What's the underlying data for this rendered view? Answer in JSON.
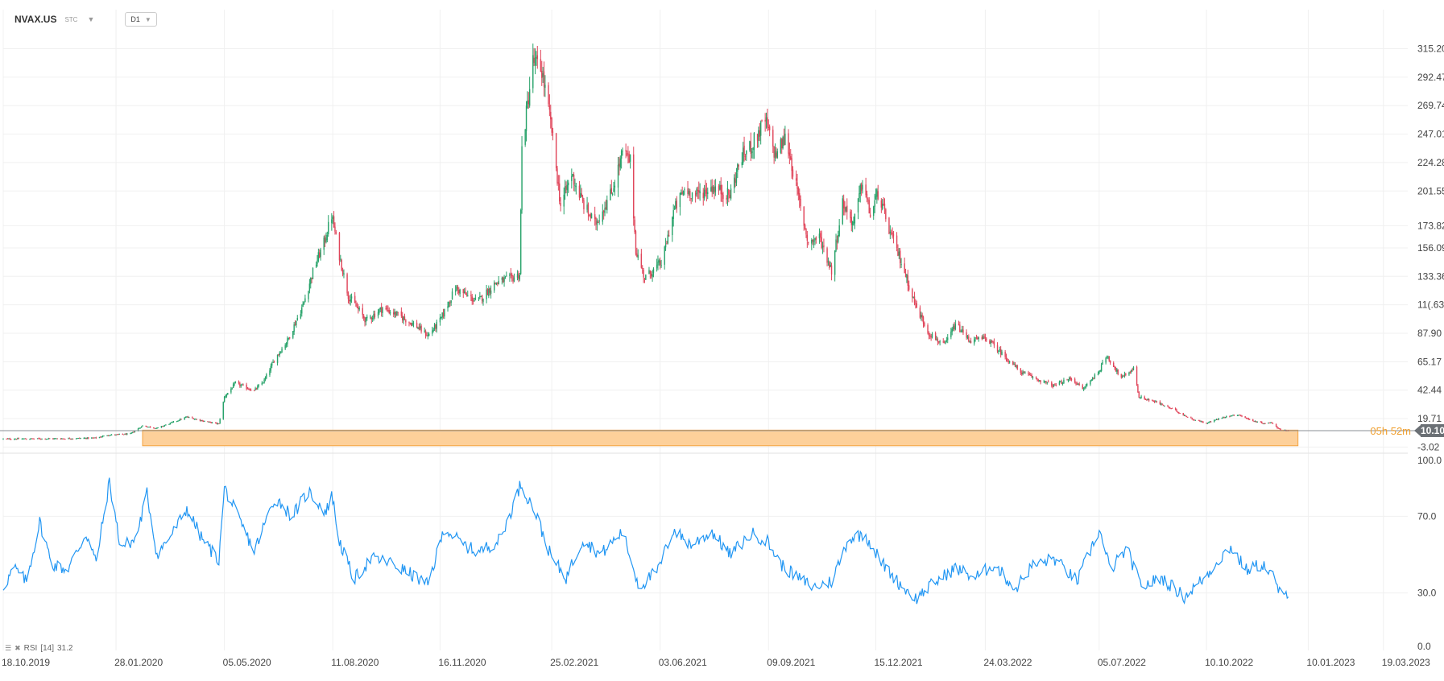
{
  "header": {
    "symbol": "NVAX.US",
    "instrument_type": "STC",
    "timeframe": "D1"
  },
  "indicator": {
    "name": "RSI",
    "period": "[14]",
    "value": "31.2"
  },
  "current_price": {
    "label": "10.10",
    "countdown": "05h 52m"
  },
  "colors": {
    "up_candle": "#26a269",
    "down_candle": "#e0455a",
    "rsi_line": "#2196f3",
    "zone_fill": "#fdd09a",
    "zone_border": "#f4a340",
    "price_tag_bg": "#6b7075",
    "countdown_text": "#f0a030",
    "grid": "#f0f0f0"
  },
  "chart_data": [
    {
      "type": "candlestick",
      "title": "",
      "ylabel": "",
      "y_ticks": [
        "315.20",
        "292.47",
        "269.74",
        "247.01",
        "224.28",
        "201.55",
        "173.82",
        "156.09",
        "133.36",
        "11(.63",
        "87.90",
        "65.17",
        "42.44",
        "19.71",
        "-3.02"
      ],
      "ylim": [
        -6,
        340
      ],
      "x_ticks": [
        "18.10.2019",
        "28.01.2020",
        "05.05.2020",
        "11.08.2020",
        "16.11.2020",
        "25.02.2021",
        "03.06.2021",
        "09.09.2021",
        "15.12.2021",
        "24.03.2022",
        "05.07.2022",
        "10.10.2022",
        "10.01.2023",
        "19.03.2023"
      ],
      "x_range": [
        "2019-10-18",
        "2023-04-10"
      ],
      "current_price": 10.1,
      "support_zone": {
        "from": "2020-02-21",
        "to": "2022-12-23",
        "low": -2,
        "high": 10.5
      },
      "price_path": [
        [
          "2019-10-18",
          3.5
        ],
        [
          "2019-12-15",
          3.8
        ],
        [
          "2020-01-10",
          4.3
        ],
        [
          "2020-01-20",
          6.5
        ],
        [
          "2020-02-10",
          7.5
        ],
        [
          "2020-02-21",
          14.0
        ],
        [
          "2020-03-05",
          12.0
        ],
        [
          "2020-03-23",
          18.0
        ],
        [
          "2020-04-01",
          21.0
        ],
        [
          "2020-04-20",
          17.0
        ],
        [
          "2020-04-30",
          15.5
        ],
        [
          "2020-05-05",
          37.0
        ],
        [
          "2020-05-15",
          48.0
        ],
        [
          "2020-06-01",
          42.0
        ],
        [
          "2020-06-10",
          50.0
        ],
        [
          "2020-06-20",
          68.0
        ],
        [
          "2020-07-01",
          82.0
        ],
        [
          "2020-07-15",
          110.0
        ],
        [
          "2020-07-25",
          140.0
        ],
        [
          "2020-08-03",
          160.0
        ],
        [
          "2020-08-10",
          182.0
        ],
        [
          "2020-08-17",
          150.0
        ],
        [
          "2020-08-25",
          118.0
        ],
        [
          "2020-09-10",
          98.0
        ],
        [
          "2020-09-25",
          108.0
        ],
        [
          "2020-10-10",
          102.0
        ],
        [
          "2020-10-25",
          94.0
        ],
        [
          "2020-11-05",
          86.0
        ],
        [
          "2020-11-16",
          98.0
        ],
        [
          "2020-11-30",
          124.0
        ],
        [
          "2020-12-10",
          118.0
        ],
        [
          "2020-12-20",
          113.0
        ],
        [
          "2021-01-05",
          128.0
        ],
        [
          "2021-01-20",
          132.0
        ],
        [
          "2021-01-27",
          135.0
        ],
        [
          "2021-01-29",
          235.0
        ],
        [
          "2021-02-08",
          305.0
        ],
        [
          "2021-02-16",
          298.0
        ],
        [
          "2021-02-25",
          250.0
        ],
        [
          "2021-03-05",
          190.0
        ],
        [
          "2021-03-15",
          215.0
        ],
        [
          "2021-03-25",
          192.0
        ],
        [
          "2021-04-05",
          175.0
        ],
        [
          "2021-04-20",
          200.0
        ],
        [
          "2021-04-30",
          232.0
        ],
        [
          "2021-05-07",
          225.0
        ],
        [
          "2021-05-12",
          155.0
        ],
        [
          "2021-05-20",
          132.0
        ],
        [
          "2021-06-05",
          145.0
        ],
        [
          "2021-06-15",
          185.0
        ],
        [
          "2021-06-25",
          203.0
        ],
        [
          "2021-07-05",
          198.0
        ],
        [
          "2021-07-20",
          205.0
        ],
        [
          "2021-08-05",
          198.0
        ],
        [
          "2021-08-15",
          228.0
        ],
        [
          "2021-08-25",
          238.0
        ],
        [
          "2021-09-06",
          258.0
        ],
        [
          "2021-09-15",
          230.0
        ],
        [
          "2021-09-25",
          245.0
        ],
        [
          "2021-10-05",
          200.0
        ],
        [
          "2021-10-15",
          160.0
        ],
        [
          "2021-10-25",
          165.0
        ],
        [
          "2021-11-05",
          138.0
        ],
        [
          "2021-11-15",
          192.0
        ],
        [
          "2021-11-25",
          175.0
        ],
        [
          "2021-12-03",
          210.0
        ],
        [
          "2021-12-10",
          182.0
        ],
        [
          "2021-12-17",
          200.0
        ],
        [
          "2021-12-28",
          168.0
        ],
        [
          "2022-01-07",
          145.0
        ],
        [
          "2022-01-20",
          110.0
        ],
        [
          "2022-02-01",
          88.0
        ],
        [
          "2022-02-15",
          78.0
        ],
        [
          "2022-02-25",
          95.0
        ],
        [
          "2022-03-10",
          82.0
        ],
        [
          "2022-03-25",
          84.0
        ],
        [
          "2022-04-10",
          70.0
        ],
        [
          "2022-04-25",
          57.0
        ],
        [
          "2022-05-10",
          51.0
        ],
        [
          "2022-05-25",
          46.0
        ],
        [
          "2022-06-10",
          52.0
        ],
        [
          "2022-06-20",
          43.0
        ],
        [
          "2022-07-05",
          58.0
        ],
        [
          "2022-07-12",
          70.0
        ],
        [
          "2022-07-25",
          52.0
        ],
        [
          "2022-08-05",
          60.0
        ],
        [
          "2022-08-10",
          37.0
        ],
        [
          "2022-08-25",
          33.0
        ],
        [
          "2022-09-10",
          27.0
        ],
        [
          "2022-09-25",
          20.0
        ],
        [
          "2022-10-10",
          16.0
        ],
        [
          "2022-10-25",
          21.0
        ],
        [
          "2022-11-08",
          23.0
        ],
        [
          "2022-11-20",
          18.0
        ],
        [
          "2022-12-01",
          16.0
        ],
        [
          "2022-12-08",
          16.5
        ],
        [
          "2022-12-15",
          11.0
        ],
        [
          "2022-12-23",
          10.1
        ]
      ]
    },
    {
      "type": "line",
      "title": "",
      "series": [
        {
          "name": "RSI [14]"
        }
      ],
      "y_ticks": [
        "100.0",
        "70.0",
        "30.0",
        "0.0"
      ],
      "ylim": [
        0,
        100
      ],
      "last_value": 31.2,
      "rsi_path": [
        [
          "2019-10-18",
          33
        ],
        [
          "2019-10-28",
          43
        ],
        [
          "2019-11-08",
          36
        ],
        [
          "2019-11-20",
          67
        ],
        [
          "2019-12-01",
          45
        ],
        [
          "2019-12-15",
          42
        ],
        [
          "2020-01-01",
          61
        ],
        [
          "2020-01-10",
          46
        ],
        [
          "2020-01-22",
          88
        ],
        [
          "2020-02-01",
          54
        ],
        [
          "2020-02-15",
          58
        ],
        [
          "2020-02-25",
          82
        ],
        [
          "2020-03-05",
          50
        ],
        [
          "2020-03-20",
          62
        ],
        [
          "2020-04-01",
          74
        ],
        [
          "2020-04-15",
          58
        ],
        [
          "2020-04-30",
          47
        ],
        [
          "2020-05-05",
          85
        ],
        [
          "2020-05-20",
          66
        ],
        [
          "2020-06-01",
          52
        ],
        [
          "2020-06-20",
          80
        ],
        [
          "2020-07-05",
          70
        ],
        [
          "2020-07-20",
          83
        ],
        [
          "2020-08-05",
          72
        ],
        [
          "2020-08-10",
          82
        ],
        [
          "2020-08-17",
          57
        ],
        [
          "2020-08-30",
          37
        ],
        [
          "2020-09-15",
          48
        ],
        [
          "2020-10-01",
          46
        ],
        [
          "2020-10-20",
          40
        ],
        [
          "2020-11-05",
          34
        ],
        [
          "2020-11-20",
          64
        ],
        [
          "2020-12-05",
          56
        ],
        [
          "2020-12-20",
          51
        ],
        [
          "2021-01-10",
          58
        ],
        [
          "2021-01-28",
          87
        ],
        [
          "2021-02-10",
          72
        ],
        [
          "2021-02-25",
          48
        ],
        [
          "2021-03-10",
          38
        ],
        [
          "2021-03-25",
          58
        ],
        [
          "2021-04-10",
          50
        ],
        [
          "2021-04-30",
          62
        ],
        [
          "2021-05-15",
          33
        ],
        [
          "2021-06-01",
          42
        ],
        [
          "2021-06-15",
          63
        ],
        [
          "2021-07-01",
          55
        ],
        [
          "2021-07-20",
          62
        ],
        [
          "2021-08-05",
          50
        ],
        [
          "2021-08-25",
          61
        ],
        [
          "2021-09-08",
          57
        ],
        [
          "2021-09-20",
          45
        ],
        [
          "2021-10-05",
          38
        ],
        [
          "2021-10-20",
          33
        ],
        [
          "2021-11-05",
          36
        ],
        [
          "2021-11-20",
          58
        ],
        [
          "2021-12-05",
          61
        ],
        [
          "2021-12-20",
          46
        ],
        [
          "2022-01-05",
          35
        ],
        [
          "2022-01-20",
          27
        ],
        [
          "2022-02-05",
          35
        ],
        [
          "2022-02-25",
          43
        ],
        [
          "2022-03-15",
          38
        ],
        [
          "2022-04-01",
          45
        ],
        [
          "2022-04-20",
          32
        ],
        [
          "2022-05-05",
          44
        ],
        [
          "2022-05-25",
          48
        ],
        [
          "2022-06-15",
          36
        ],
        [
          "2022-07-05",
          63
        ],
        [
          "2022-07-15",
          42
        ],
        [
          "2022-07-30",
          53
        ],
        [
          "2022-08-12",
          33
        ],
        [
          "2022-08-30",
          38
        ],
        [
          "2022-09-20",
          28
        ],
        [
          "2022-10-10",
          39
        ],
        [
          "2022-10-20",
          47
        ],
        [
          "2022-11-01",
          54
        ],
        [
          "2022-11-15",
          42
        ],
        [
          "2022-11-30",
          45
        ],
        [
          "2022-12-10",
          38
        ],
        [
          "2022-12-18",
          26
        ],
        [
          "2022-12-23",
          31.2
        ]
      ]
    }
  ]
}
